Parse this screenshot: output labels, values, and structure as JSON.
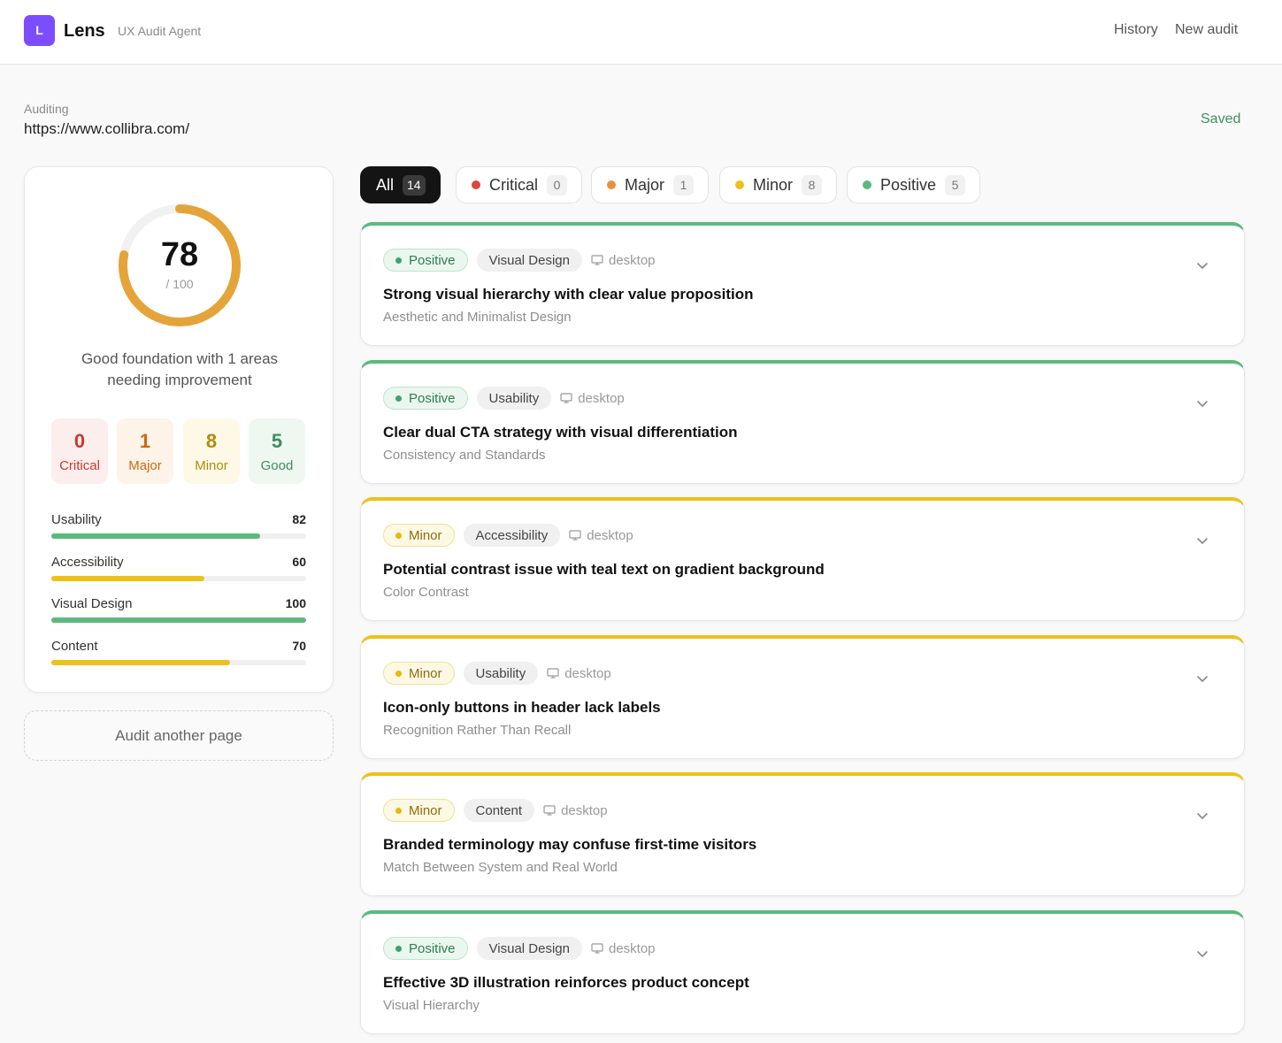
{
  "header": {
    "logo_letter": "L",
    "brand": "Lens",
    "subtitle": "UX Audit Agent",
    "nav": [
      "History",
      "New audit"
    ]
  },
  "audit": {
    "label": "Auditing",
    "url": "https://www.collibra.com/",
    "status": "Saved"
  },
  "score": {
    "value": "78",
    "max": "/ 100",
    "fraction": 0.78,
    "summary": "Good foundation with 1 areas needing improvement",
    "counts": [
      {
        "num": "0",
        "label": "Critical"
      },
      {
        "num": "1",
        "label": "Major"
      },
      {
        "num": "8",
        "label": "Minor"
      },
      {
        "num": "5",
        "label": "Good"
      }
    ],
    "metrics": [
      {
        "name": "Usability",
        "value": "82",
        "fraction": 0.82
      },
      {
        "name": "Accessibility",
        "value": "60",
        "fraction": 0.6
      },
      {
        "name": "Visual Design",
        "value": "100",
        "fraction": 1.0
      },
      {
        "name": "Content",
        "value": "70",
        "fraction": 0.7
      }
    ]
  },
  "audit_another": "Audit another page",
  "filters": [
    {
      "label": "All",
      "count": "14"
    },
    {
      "label": "Critical",
      "count": "0"
    },
    {
      "label": "Major",
      "count": "1"
    },
    {
      "label": "Minor",
      "count": "8"
    },
    {
      "label": "Positive",
      "count": "5"
    }
  ],
  "colors": {
    "positive": "#5db87e",
    "minor": "#ecc21a",
    "major": "#e8913a",
    "critical": "#d9483b",
    "accent": "#7c4dff",
    "gauge": "#e4a43a"
  },
  "issues": [
    {
      "severity": "Positive",
      "category": "Visual Design",
      "device": "desktop",
      "title": "Strong visual hierarchy with clear value proposition",
      "principle": "Aesthetic and Minimalist Design"
    },
    {
      "severity": "Positive",
      "category": "Usability",
      "device": "desktop",
      "title": "Clear dual CTA strategy with visual differentiation",
      "principle": "Consistency and Standards"
    },
    {
      "severity": "Minor",
      "category": "Accessibility",
      "device": "desktop",
      "title": "Potential contrast issue with teal text on gradient background",
      "principle": "Color Contrast"
    },
    {
      "severity": "Minor",
      "category": "Usability",
      "device": "desktop",
      "title": "Icon-only buttons in header lack labels",
      "principle": "Recognition Rather Than Recall"
    },
    {
      "severity": "Minor",
      "category": "Content",
      "device": "desktop",
      "title": "Branded terminology may confuse first-time visitors",
      "principle": "Match Between System and Real World"
    },
    {
      "severity": "Positive",
      "category": "Visual Design",
      "device": "desktop",
      "title": "Effective 3D illustration reinforces product concept",
      "principle": "Visual Hierarchy"
    }
  ]
}
